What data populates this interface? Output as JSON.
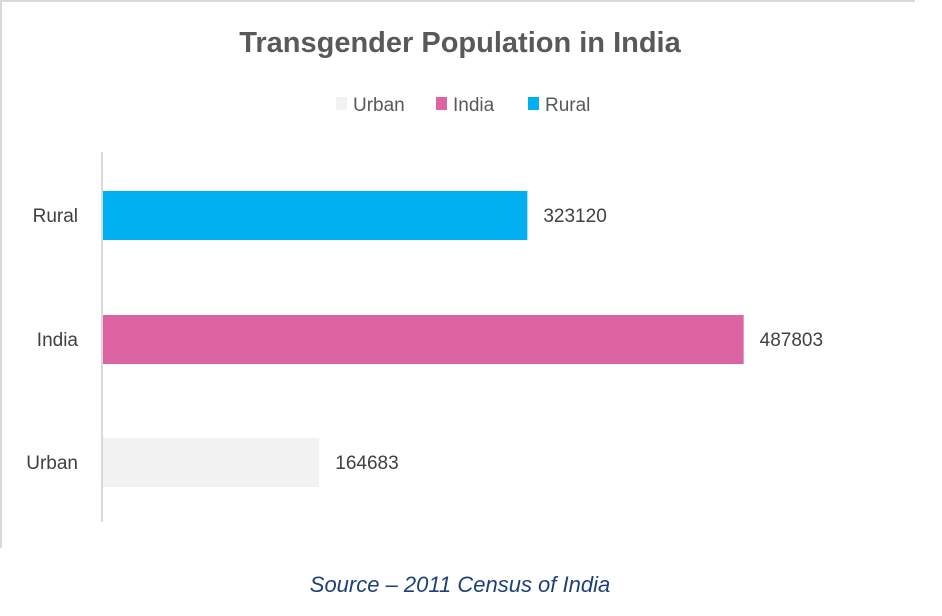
{
  "chart_data": {
    "type": "bar",
    "orientation": "horizontal",
    "title": "Transgender Population in India",
    "categories": [
      "Urban",
      "India",
      "Rural"
    ],
    "values": [
      164683,
      487803,
      323120
    ],
    "data_labels": [
      "164683",
      "487803",
      "323120"
    ],
    "colors": [
      "#f2f2f2",
      "#dc64a3",
      "#00b0f0"
    ],
    "legend": {
      "placement": "top",
      "entries": [
        "Urban",
        "India",
        "Rural"
      ]
    },
    "xlim": [
      0,
      600000
    ],
    "grid": false,
    "xlabel": "",
    "ylabel": ""
  },
  "source": "Source – 2011 Census of India"
}
